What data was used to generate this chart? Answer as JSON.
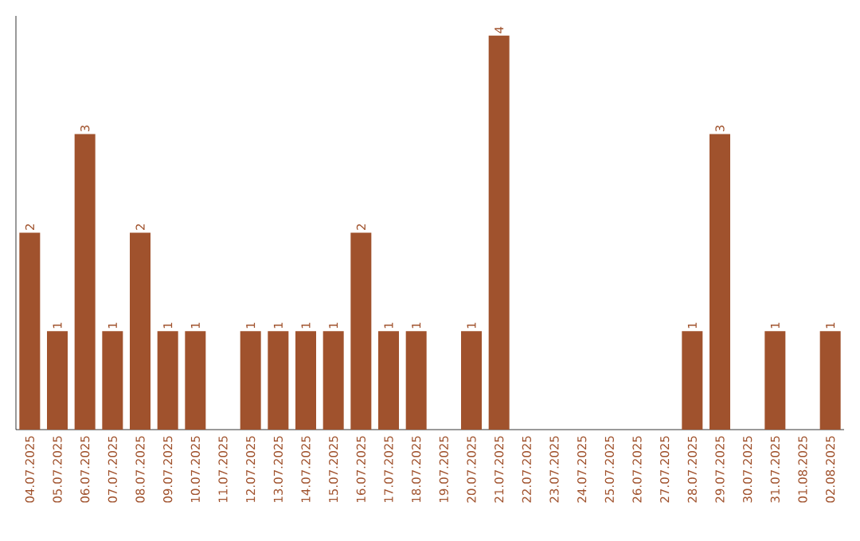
{
  "chart_data": {
    "type": "bar",
    "categories": [
      "04.07.2025",
      "05.07.2025",
      "06.07.2025",
      "07.07.2025",
      "08.07.2025",
      "09.07.2025",
      "10.07.2025",
      "11.07.2025",
      "12.07.2025",
      "13.07.2025",
      "14.07.2025",
      "15.07.2025",
      "16.07.2025",
      "17.07.2025",
      "18.07.2025",
      "19.07.2025",
      "20.07.2025",
      "21.07.2025",
      "22.07.2025",
      "23.07.2025",
      "24.07.2025",
      "25.07.2025",
      "26.07.2025",
      "27.07.2025",
      "28.07.2025",
      "29.07.2025",
      "30.07.2025",
      "31.07.2025",
      "01.08.2025",
      "02.08.2025"
    ],
    "values": [
      2,
      1,
      3,
      1,
      2,
      1,
      1,
      0,
      1,
      1,
      1,
      1,
      2,
      1,
      1,
      0,
      1,
      4,
      0,
      0,
      0,
      0,
      0,
      0,
      1,
      3,
      0,
      1,
      0,
      1
    ],
    "value_labels": [
      "2",
      "1",
      "3",
      "1",
      "2",
      "1",
      "1",
      null,
      "1",
      "1",
      "1",
      "1",
      "2",
      "1",
      "1",
      null,
      "1",
      "4",
      null,
      null,
      null,
      null,
      null,
      null,
      "1",
      "3",
      null,
      "1",
      null,
      "1"
    ],
    "color": "#a0522d",
    "ylim": [
      0,
      4.2
    ],
    "tick_labels": "x",
    "grid": false
  }
}
